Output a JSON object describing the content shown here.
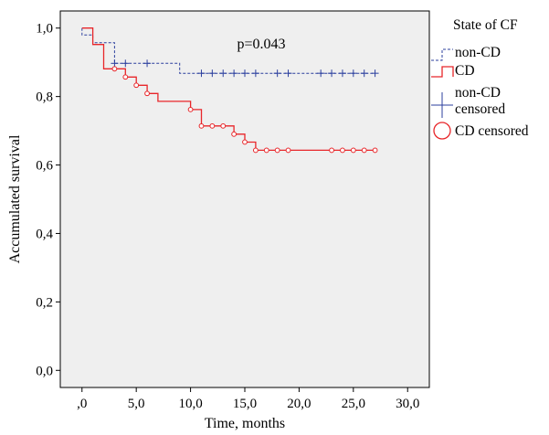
{
  "chart_data": {
    "type": "line",
    "subtype": "kaplan-meier step",
    "xlabel": "Time, months",
    "ylabel": "Accumulated survival",
    "xlim": [
      -2,
      32
    ],
    "ylim": [
      -0.05,
      1.05
    ],
    "xticks": [
      0,
      5,
      10,
      15,
      20,
      25,
      30
    ],
    "xtick_labels": [
      ",0",
      "5,0",
      "10,0",
      "15,0",
      "20,0",
      "25,0",
      "30,0"
    ],
    "yticks": [
      0,
      0.2,
      0.4,
      0.6,
      0.8,
      1.0
    ],
    "ytick_labels": [
      "0,0",
      "0,2",
      "0,4",
      "0,6",
      "0,8",
      "1,0"
    ],
    "annotation": "p=0.043",
    "grid": false,
    "legend": {
      "title": "State of CF",
      "placement": "right",
      "entries": [
        "non-CD",
        "CD",
        "non-CD censored",
        "CD censored"
      ]
    },
    "series": [
      {
        "name": "non-CD",
        "color": "#2b3f9e",
        "line_style": "dashed",
        "steps": [
          [
            0,
            1.0
          ],
          [
            0,
            0.98
          ],
          [
            1,
            0.98
          ],
          [
            1,
            0.957
          ],
          [
            3,
            0.957
          ],
          [
            3,
            0.897
          ],
          [
            9,
            0.897
          ],
          [
            9,
            0.868
          ],
          [
            27,
            0.868
          ]
        ],
        "censored": [
          3,
          4,
          6,
          11,
          12,
          13,
          14,
          15,
          16,
          18,
          19,
          22,
          23,
          24,
          25,
          26,
          27
        ]
      },
      {
        "name": "CD",
        "color": "#e8262a",
        "line_style": "solid",
        "steps": [
          [
            0,
            1.0
          ],
          [
            1,
            1.0
          ],
          [
            1,
            0.952
          ],
          [
            2,
            0.952
          ],
          [
            2,
            0.881
          ],
          [
            4,
            0.881
          ],
          [
            4,
            0.857
          ],
          [
            5,
            0.857
          ],
          [
            5,
            0.833
          ],
          [
            6,
            0.833
          ],
          [
            6,
            0.809
          ],
          [
            7,
            0.809
          ],
          [
            7,
            0.786
          ],
          [
            10,
            0.786
          ],
          [
            10,
            0.762
          ],
          [
            11,
            0.762
          ],
          [
            11,
            0.714
          ],
          [
            14,
            0.714
          ],
          [
            14,
            0.69
          ],
          [
            15,
            0.69
          ],
          [
            15,
            0.667
          ],
          [
            16,
            0.667
          ],
          [
            16,
            0.643
          ],
          [
            27,
            0.643
          ]
        ],
        "censored": [
          3,
          4,
          5,
          6,
          10,
          11,
          12,
          13,
          14,
          15,
          16,
          17,
          18,
          19,
          23,
          24,
          25,
          26,
          27
        ]
      }
    ]
  }
}
